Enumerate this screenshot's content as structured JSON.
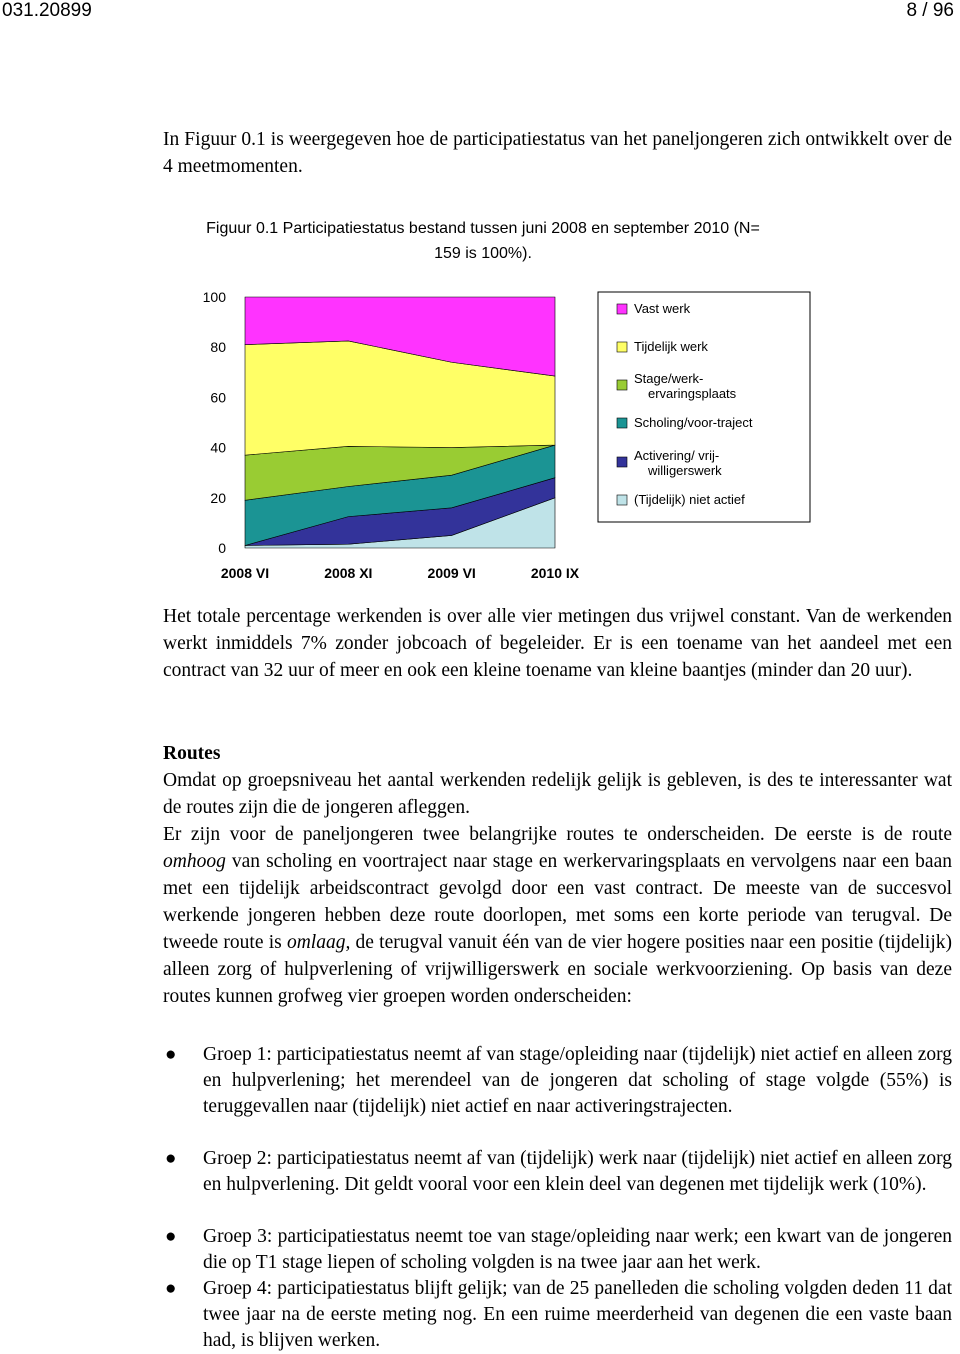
{
  "header": {
    "left": "031.20899",
    "right": "8 / 96"
  },
  "intro": "In Figuur 0.1 is weergegeven hoe de participatiestatus van het paneljongeren zich ontwikkelt over de 4 meetmomenten.",
  "figure_caption": [
    "Figuur 0.1 Participatiestatus bestand tussen juni 2008 en september 2010 (N=",
    "159 is 100%)."
  ],
  "chart_data": {
    "type": "stacked_area",
    "categories": [
      "2008 VI",
      "2008 XI",
      "2009 VI",
      "2010 IX"
    ],
    "ylim": [
      0,
      100
    ],
    "yticks": [
      0,
      20,
      40,
      60,
      80,
      100
    ],
    "legend": "right",
    "series": [
      {
        "name": "(Tijdelijk) niet actief",
        "color": "#bfe3e8",
        "values": [
          1,
          1.5,
          5,
          20
        ]
      },
      {
        "name": "Activering/ vrij-\nwilligerswerk",
        "color": "#33339a",
        "values": [
          0,
          11,
          11,
          8
        ]
      },
      {
        "name": "Scholing/voor-traject",
        "color": "#1b9494",
        "values": [
          18,
          12,
          13,
          13
        ]
      },
      {
        "name": "Stage/werk-\nervaringsplaats",
        "color": "#99cc33",
        "values": [
          18,
          16,
          11,
          0
        ]
      },
      {
        "name": "Tijdelijk werk",
        "color": "#ffff66",
        "values": [
          44,
          42,
          34,
          27.5
        ]
      },
      {
        "name": "Vast werk",
        "color": "#ff33ff",
        "values": [
          19,
          17.5,
          26,
          31.5
        ]
      }
    ]
  },
  "paragraph1": "Het totale percentage werkenden is over alle vier metingen dus vrijwel constant. Van de werkenden werkt inmiddels 7% zonder jobcoach of begeleider. Er is een toename van het aandeel met een contract van 32 uur of meer en ook een kleine toename van kleine baantjes (minder dan 20 uur).",
  "heading": "Routes",
  "paragraph2": [
    "Omdat op groepsniveau het aantal werkenden redelijk gelijk is gebleven, is des te interessanter wat de routes zijn die de jongeren afleggen.",
    "Er zijn voor de paneljongeren twee belangrijke routes te onderscheiden. De eerste is de route ",
    "omhoog",
    " van scholing en voortraject naar stage en werkervaringsplaats en vervolgens naar een baan met een tijdelijk arbeidscontract gevolgd door een vast contract. De meeste van de succesvol werkende jongeren hebben deze route doorlopen, met soms een korte periode van terugval. De tweede route is ",
    "omlaag,",
    " de terugval vanuit één van de vier hogere posities naar een positie (tijdelijk) alleen zorg of hulpverlening of vrijwilligerswerk en sociale werkvoorziening. Op basis van deze routes kunnen grofweg vier groepen worden onderscheiden:"
  ],
  "bullets": [
    "Groep 1: participatiestatus neemt af van stage/opleiding naar (tijdelijk) niet actief en alleen zorg en hulpverlening; het merendeel van de jongeren dat scholing of stage volgde (55%) is teruggevallen naar (tijdelijk) niet actief en naar activeringstrajecten.",
    "Groep 2: participatiestatus neemt af van (tijdelijk) werk naar (tijdelijk) niet actief en alleen zorg en hulpverlening. Dit geldt vooral voor een klein deel van degenen met tijdelijk werk (10%).",
    "Groep 3: participatiestatus neemt toe van stage/opleiding naar werk; een kwart van de jongeren die op T1 stage liepen of scholing volgden is na twee jaar aan het werk.",
    "Groep 4: participatiestatus blijft gelijk; van de 25 panelleden die scholing volgden deden 11 dat twee jaar na de eerste meting nog. En een ruime meerderheid van degenen die een vaste baan had, is blijven werken."
  ]
}
